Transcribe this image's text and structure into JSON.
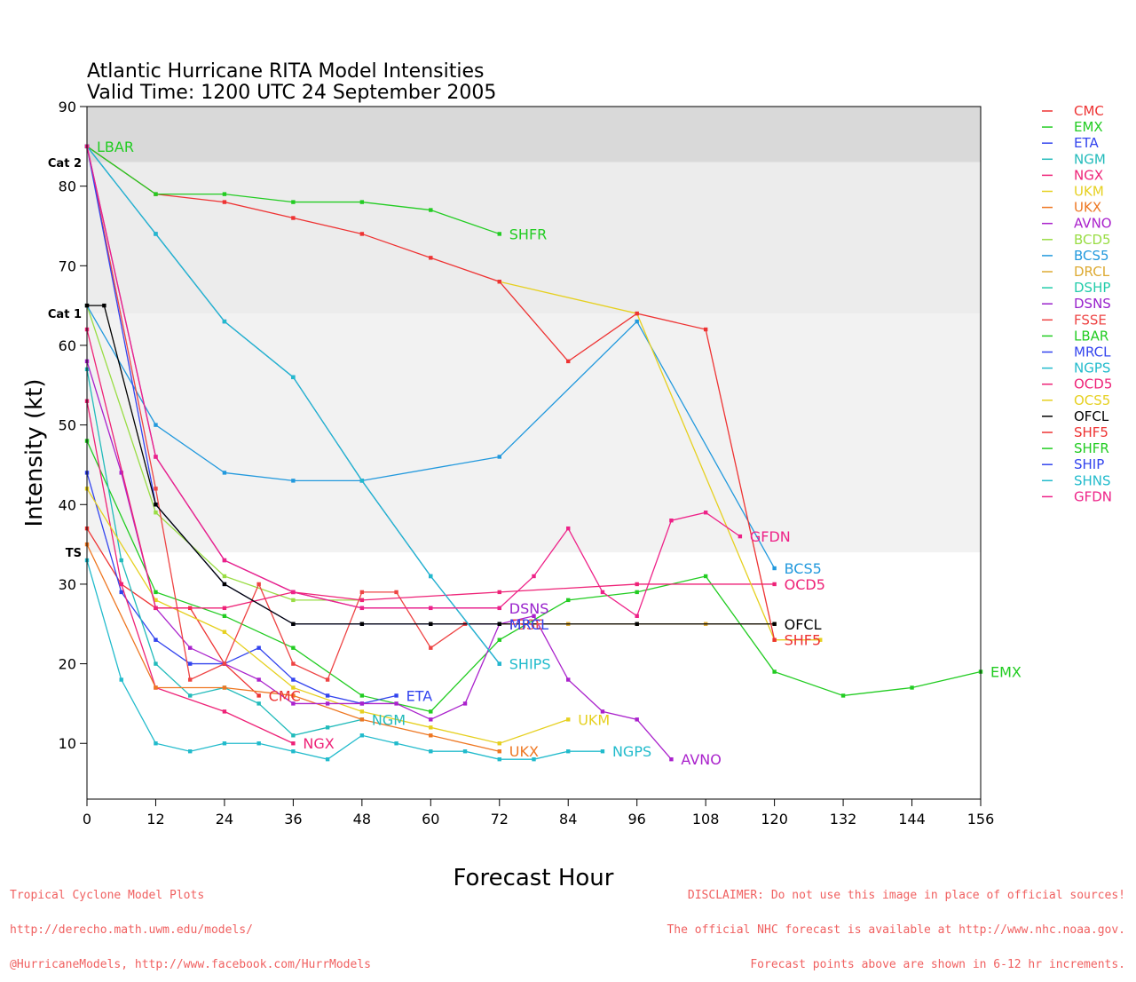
{
  "chart_data": {
    "type": "line",
    "title": [
      "Atlantic Hurricane RITA Model Intensities",
      "Valid Time: 1200 UTC 24 September 2005"
    ],
    "xlabel": "Forecast Hour",
    "ylabel": "Intensity (kt)",
    "xlim": [
      0,
      156
    ],
    "ylim": [
      3,
      90
    ],
    "xticks": [
      0,
      12,
      24,
      36,
      48,
      60,
      72,
      84,
      96,
      108,
      120,
      132,
      144,
      156
    ],
    "yticks": [
      10,
      20,
      30,
      40,
      50,
      60,
      70,
      80,
      90
    ],
    "grid": false,
    "legend_position": "right",
    "intensity_bands": [
      {
        "label": "Cat 2",
        "from": 83,
        "to": 90,
        "color": "#d9d9d9"
      },
      {
        "label": "Cat 1",
        "from": 64,
        "to": 83,
        "color": "#ececec"
      },
      {
        "label": "TS",
        "from": 34,
        "to": 64,
        "color": "#f2f2f2"
      }
    ],
    "series": [
      {
        "name": "CMC",
        "color": "#ee3333",
        "end_label": "CMC",
        "points": [
          [
            0,
            37
          ],
          [
            6,
            30
          ],
          [
            12,
            27
          ],
          [
            18,
            27
          ],
          [
            24,
            20
          ],
          [
            30,
            16
          ]
        ]
      },
      {
        "name": "EMX",
        "color": "#22cc22",
        "end_label": "EMX",
        "points": [
          [
            0,
            48
          ],
          [
            12,
            29
          ],
          [
            24,
            26
          ],
          [
            36,
            22
          ],
          [
            48,
            16
          ],
          [
            60,
            14
          ],
          [
            72,
            23
          ],
          [
            84,
            28
          ],
          [
            96,
            29
          ],
          [
            108,
            31
          ],
          [
            120,
            19
          ],
          [
            132,
            16
          ],
          [
            144,
            17
          ],
          [
            156,
            19
          ]
        ]
      },
      {
        "name": "ETA",
        "color": "#3344ee",
        "end_label": "ETA",
        "points": [
          [
            0,
            44
          ],
          [
            6,
            29
          ],
          [
            12,
            23
          ],
          [
            18,
            20
          ],
          [
            24,
            20
          ],
          [
            30,
            22
          ],
          [
            36,
            18
          ],
          [
            42,
            16
          ],
          [
            48,
            15
          ],
          [
            54,
            16
          ]
        ]
      },
      {
        "name": "NGM",
        "color": "#22bbbb",
        "end_label": "NGM",
        "points": [
          [
            0,
            57
          ],
          [
            6,
            33
          ],
          [
            12,
            20
          ],
          [
            18,
            16
          ],
          [
            24,
            17
          ],
          [
            30,
            15
          ],
          [
            36,
            11
          ],
          [
            42,
            12
          ],
          [
            48,
            13
          ]
        ]
      },
      {
        "name": "NGX",
        "color": "#ee2277",
        "end_label": "NGX",
        "points": [
          [
            0,
            53
          ],
          [
            6,
            30
          ],
          [
            12,
            17
          ],
          [
            24,
            14
          ],
          [
            36,
            10
          ]
        ]
      },
      {
        "name": "UKM",
        "color": "#e6d020",
        "end_label": "UKM",
        "points": [
          [
            0,
            42
          ],
          [
            12,
            28
          ],
          [
            24,
            24
          ],
          [
            36,
            17
          ],
          [
            48,
            14
          ],
          [
            60,
            12
          ],
          [
            72,
            10
          ],
          [
            84,
            13
          ]
        ]
      },
      {
        "name": "UKX",
        "color": "#ee7722",
        "end_label": "UKX",
        "points": [
          [
            0,
            35
          ],
          [
            12,
            17
          ],
          [
            24,
            17
          ],
          [
            36,
            16
          ],
          [
            48,
            13
          ],
          [
            60,
            11
          ],
          [
            72,
            9
          ]
        ]
      },
      {
        "name": "AVNO",
        "color": "#aa22cc",
        "end_label": "AVNO",
        "points": [
          [
            0,
            58
          ],
          [
            6,
            44
          ],
          [
            12,
            27
          ],
          [
            18,
            22
          ],
          [
            24,
            20
          ],
          [
            30,
            18
          ],
          [
            36,
            15
          ],
          [
            42,
            15
          ],
          [
            48,
            15
          ],
          [
            54,
            15
          ],
          [
            60,
            13
          ],
          [
            66,
            15
          ],
          [
            72,
            25
          ],
          [
            78,
            26
          ],
          [
            84,
            18
          ],
          [
            90,
            14
          ],
          [
            96,
            13
          ],
          [
            102,
            8
          ]
        ]
      },
      {
        "name": "BCD5",
        "color": "#99dd44",
        "end_label": "",
        "points": [
          [
            0,
            65
          ],
          [
            12,
            39
          ],
          [
            24,
            31
          ],
          [
            36,
            28
          ],
          [
            48,
            28
          ]
        ]
      },
      {
        "name": "BCS5",
        "color": "#2299dd",
        "end_label": "BCS5",
        "points": [
          [
            0,
            65
          ],
          [
            12,
            50
          ],
          [
            24,
            44
          ],
          [
            36,
            43
          ],
          [
            48,
            43
          ],
          [
            72,
            46
          ],
          [
            96,
            63
          ],
          [
            120,
            32
          ]
        ]
      },
      {
        "name": "DRCL",
        "color": "#ddaa33",
        "end_label": "",
        "points": [
          [
            60,
            25
          ],
          [
            72,
            25
          ],
          [
            84,
            25
          ],
          [
            96,
            25
          ],
          [
            108,
            25
          ],
          [
            120,
            25
          ]
        ]
      },
      {
        "name": "DSHP",
        "color": "#22ccaa",
        "end_label": "",
        "points": []
      },
      {
        "name": "DSNS",
        "color": "#9922cc",
        "end_label": "DSNS",
        "points": [
          [
            0,
            85
          ],
          [
            12,
            46
          ],
          [
            24,
            33
          ],
          [
            36,
            29
          ],
          [
            48,
            27
          ],
          [
            60,
            27
          ],
          [
            72,
            27
          ]
        ]
      },
      {
        "name": "FSSE",
        "color": "#ee4444",
        "end_label": "FSSE",
        "points": [
          [
            0,
            85
          ],
          [
            12,
            42
          ],
          [
            18,
            18
          ],
          [
            24,
            20
          ],
          [
            30,
            30
          ],
          [
            36,
            20
          ],
          [
            42,
            18
          ],
          [
            48,
            29
          ],
          [
            54,
            29
          ],
          [
            60,
            22
          ],
          [
            66,
            25
          ],
          [
            72,
            25
          ]
        ]
      },
      {
        "name": "LBAR",
        "color": "#22cc22",
        "end_label": "LBAR",
        "points": [
          [
            0,
            85
          ]
        ]
      },
      {
        "name": "MRCL",
        "color": "#3344ee",
        "end_label": "MRCL",
        "points": [
          [
            0,
            85
          ],
          [
            12,
            40
          ],
          [
            24,
            30
          ],
          [
            36,
            25
          ],
          [
            48,
            25
          ],
          [
            60,
            25
          ],
          [
            72,
            25
          ]
        ]
      },
      {
        "name": "NGPS",
        "color": "#22bbcc",
        "end_label": "NGPS",
        "points": [
          [
            0,
            33
          ],
          [
            6,
            18
          ],
          [
            12,
            10
          ],
          [
            18,
            9
          ],
          [
            24,
            10
          ],
          [
            30,
            10
          ],
          [
            36,
            9
          ],
          [
            42,
            8
          ],
          [
            48,
            11
          ],
          [
            54,
            10
          ],
          [
            60,
            9
          ],
          [
            66,
            9
          ],
          [
            72,
            8
          ],
          [
            78,
            8
          ],
          [
            84,
            9
          ],
          [
            90,
            9
          ]
        ]
      },
      {
        "name": "OCD5",
        "color": "#ee2277",
        "end_label": "OCD5",
        "points": [
          [
            0,
            62
          ],
          [
            12,
            27
          ],
          [
            24,
            27
          ],
          [
            36,
            29
          ],
          [
            48,
            28
          ],
          [
            72,
            29
          ],
          [
            96,
            30
          ],
          [
            120,
            30
          ]
        ]
      },
      {
        "name": "OCS5",
        "color": "#e6d020",
        "end_label": "",
        "points": [
          [
            72,
            68
          ],
          [
            96,
            64
          ],
          [
            120,
            23
          ],
          [
            128,
            23
          ]
        ]
      },
      {
        "name": "OFCL",
        "color": "#000000",
        "end_label": "OFCL",
        "points": [
          [
            0,
            65
          ],
          [
            3,
            65
          ],
          [
            12,
            40
          ],
          [
            24,
            30
          ],
          [
            36,
            25
          ],
          [
            48,
            25
          ],
          [
            60,
            25
          ],
          [
            72,
            25
          ],
          [
            96,
            25
          ],
          [
            120,
            25
          ]
        ]
      },
      {
        "name": "SHF5",
        "color": "#ee3333",
        "end_label": "SHF5",
        "points": [
          [
            0,
            85
          ],
          [
            12,
            79
          ],
          [
            24,
            78
          ],
          [
            36,
            76
          ],
          [
            48,
            74
          ],
          [
            60,
            71
          ],
          [
            72,
            68
          ],
          [
            84,
            58
          ],
          [
            96,
            64
          ],
          [
            108,
            62
          ],
          [
            120,
            23
          ]
        ]
      },
      {
        "name": "SHFR",
        "color": "#22cc22",
        "end_label": "SHFR",
        "points": [
          [
            0,
            85
          ],
          [
            12,
            79
          ],
          [
            24,
            79
          ],
          [
            36,
            78
          ],
          [
            48,
            78
          ],
          [
            60,
            77
          ],
          [
            72,
            74
          ]
        ]
      },
      {
        "name": "SHIP",
        "color": "#3344ee",
        "end_label": "",
        "points": [
          [
            0,
            85
          ],
          [
            12,
            74
          ],
          [
            24,
            63
          ],
          [
            36,
            56
          ],
          [
            48,
            43
          ],
          [
            60,
            31
          ],
          [
            72,
            20
          ]
        ]
      },
      {
        "name": "SHNS",
        "color": "#22bbcc",
        "end_label": "SHIPS",
        "points": [
          [
            0,
            85
          ],
          [
            12,
            74
          ],
          [
            24,
            63
          ],
          [
            36,
            56
          ],
          [
            48,
            43
          ],
          [
            60,
            31
          ],
          [
            72,
            20
          ]
        ]
      },
      {
        "name": "GFDN",
        "color": "#ee2288",
        "end_label": "GFDN",
        "points": [
          [
            0,
            85
          ],
          [
            12,
            46
          ],
          [
            24,
            33
          ],
          [
            36,
            29
          ],
          [
            48,
            27
          ],
          [
            60,
            27
          ],
          [
            72,
            27
          ],
          [
            78,
            31
          ],
          [
            84,
            37
          ],
          [
            90,
            29
          ],
          [
            96,
            26
          ],
          [
            102,
            38
          ],
          [
            108,
            39
          ],
          [
            114,
            36
          ]
        ]
      }
    ]
  },
  "footer": {
    "left": [
      "Tropical Cyclone Model Plots",
      "http://derecho.math.uwm.edu/models/",
      "@HurricaneModels, http://www.facebook.com/HurrModels"
    ],
    "right": [
      "DISCLAIMER: Do not use this image in place of official sources!",
      "The official NHC forecast is available at http://www.nhc.noaa.gov.",
      "Forecast points above are shown in 6-12 hr increments."
    ]
  }
}
